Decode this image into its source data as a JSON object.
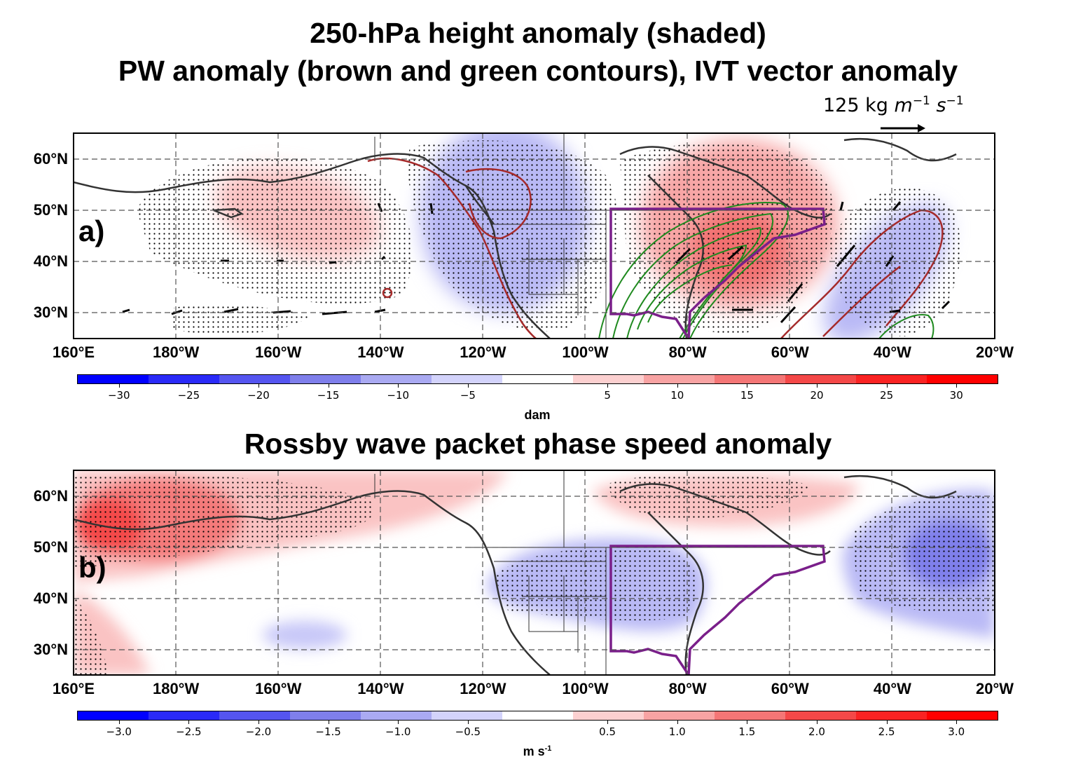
{
  "panel_a": {
    "title_line1": "250-hPa height anomaly (shaded)",
    "title_line2": "PW anomaly (brown and green contours), IVT vector anomaly",
    "ivt_reference": {
      "value": "125 kg",
      "unit_m": "m",
      "exp_m": "−1",
      "unit_s": "s",
      "exp_s": "−1"
    },
    "panel_label": "a)",
    "colorbar": {
      "units": "dam",
      "ticks": [
        "−30",
        "−25",
        "−20",
        "−15",
        "−10",
        "−5",
        "5",
        "10",
        "15",
        "20",
        "25",
        "30"
      ],
      "tick_values": [
        -30,
        -25,
        -20,
        -15,
        -10,
        -5,
        5,
        10,
        15,
        20,
        25,
        30
      ],
      "range": [
        -33,
        33
      ],
      "colors": [
        "#0000ff",
        "#2a2af8",
        "#5555f0",
        "#7f7feb",
        "#aaaaf2",
        "#d3d3fb",
        "#ffffff",
        "#fcd0d0",
        "#f8a3a3",
        "#f47676",
        "#f44848",
        "#fa2323",
        "#ff0000"
      ]
    }
  },
  "panel_b": {
    "title": "Rossby wave packet phase speed anomaly",
    "panel_label": "b)",
    "colorbar": {
      "units": "m s",
      "units_exp": "-1",
      "ticks": [
        "−3.0",
        "−2.5",
        "−2.0",
        "−1.5",
        "−1.0",
        "−0.5",
        "0.5",
        "1.0",
        "1.5",
        "2.0",
        "2.5",
        "3.0"
      ],
      "tick_values": [
        -3.0,
        -2.5,
        -2.0,
        -1.5,
        -1.0,
        -0.5,
        0.5,
        1.0,
        1.5,
        2.0,
        2.5,
        3.0
      ],
      "range": [
        -3.3,
        3.3
      ],
      "colors": [
        "#0000ff",
        "#2a2af8",
        "#5555f0",
        "#7f7feb",
        "#aaaaf2",
        "#d3d3fb",
        "#ffffff",
        "#fcd0d0",
        "#f8a3a3",
        "#f47676",
        "#f44848",
        "#fa2323",
        "#ff0000"
      ]
    }
  },
  "map": {
    "lat_labels": [
      "60°N",
      "50°N",
      "40°N",
      "30°N"
    ],
    "lat_values": [
      60,
      50,
      40,
      30
    ],
    "lon_labels": [
      "160°E",
      "180°W",
      "160°W",
      "140°W",
      "120°W",
      "100°W",
      "80°W",
      "60°W",
      "40°W",
      "20°W"
    ],
    "lon_values": [
      160,
      180,
      200,
      220,
      240,
      260,
      280,
      300,
      320,
      340
    ],
    "lon_range": [
      160,
      340
    ],
    "lat_range": [
      25,
      65
    ]
  },
  "colors": {
    "coast": "#333333",
    "region_box": "#7a1f8a",
    "pw_brown": "#a52a2a",
    "pw_green": "#1f8a1f",
    "stipple": "#000000",
    "vector": "#000000"
  }
}
